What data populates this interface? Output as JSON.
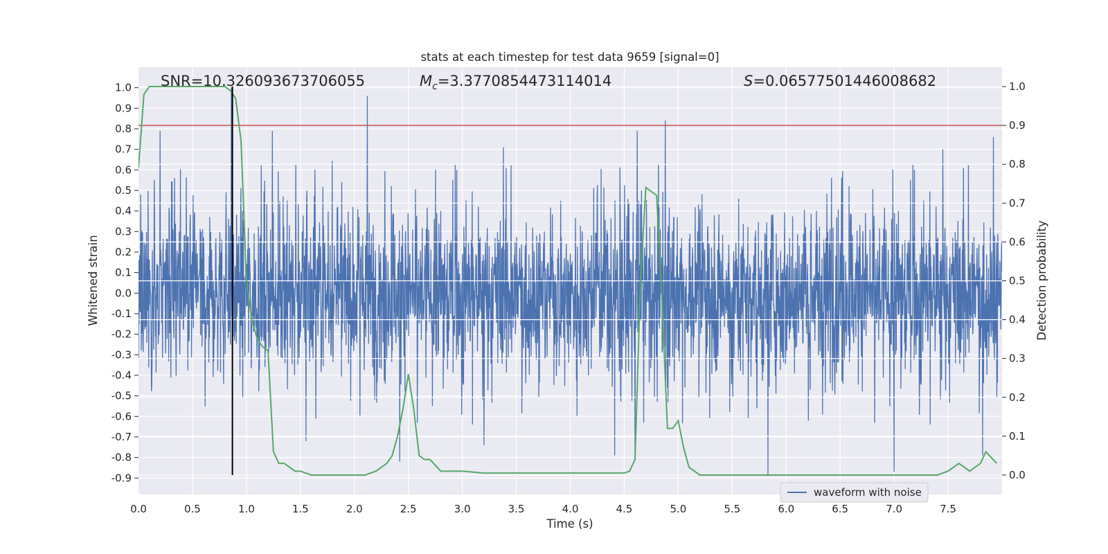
{
  "chart_data": {
    "type": "line",
    "title": "stats at each timestep for test data 9659 [signal=0]",
    "xlabel": "Time (s)",
    "ylabel": "Whitened strain",
    "y2label": "Detection probability",
    "xlim": [
      0.0,
      8.0
    ],
    "ylim": [
      -0.98,
      1.1
    ],
    "y2lim": [
      -0.05,
      1.05
    ],
    "xticks": [
      "0.0",
      "0.5",
      "1.0",
      "1.5",
      "2.0",
      "2.5",
      "3.0",
      "3.5",
      "4.0",
      "4.5",
      "5.0",
      "5.5",
      "6.0",
      "6.5",
      "7.0",
      "7.5"
    ],
    "yticks": [
      "1.0",
      "0.9",
      "0.8",
      "0.7",
      "0.6",
      "0.5",
      "0.4",
      "0.3",
      "0.2",
      "0.1",
      "0.0",
      "-0.1",
      "-0.2",
      "-0.3",
      "-0.4",
      "-0.5",
      "-0.6",
      "-0.7",
      "-0.8",
      "-0.9"
    ],
    "y2ticks": [
      "1.0",
      "0.9",
      "0.8",
      "0.7",
      "0.6",
      "0.5",
      "0.4",
      "0.3",
      "0.2",
      "0.1",
      "0.0"
    ],
    "annotations": {
      "snr": "SNR=10.326093673706055",
      "mc_symbol": "M",
      "mc_sub": "c",
      "mc_value": "=3.3770854473114014",
      "s_symbol": "S",
      "s_value": "=0.06577501446008682"
    },
    "legend": {
      "label": "waveform with noise",
      "position": "lower-right"
    },
    "threshold": {
      "y2": 0.9,
      "color": "#c44e52"
    },
    "marker_time": 0.87,
    "colors": {
      "strain": "#4c72b0",
      "prob": "#55a868",
      "threshold": "#c44e52",
      "marker": "#000000",
      "background": "#eaeaf2",
      "grid": "#ffffff"
    },
    "series": [
      {
        "name": "waveform with noise",
        "note": "noisy whitened strain, dense band about +/-0.25 with spikes",
        "spikes": [
          {
            "x": 0.86,
            "y": 1.0
          },
          {
            "x": 2.12,
            "y": 0.96
          },
          {
            "x": 4.88,
            "y": 0.84
          },
          {
            "x": 0.2,
            "y": 0.79
          },
          {
            "x": 1.24,
            "y": 0.79
          },
          {
            "x": 4.62,
            "y": 0.79
          },
          {
            "x": 7.92,
            "y": 0.76
          },
          {
            "x": 3.38,
            "y": 0.71
          },
          {
            "x": 7.45,
            "y": 0.7
          },
          {
            "x": 5.83,
            "y": -0.89
          },
          {
            "x": 7.0,
            "y": -0.87
          },
          {
            "x": 4.6,
            "y": -0.81
          },
          {
            "x": 4.41,
            "y": -0.79
          },
          {
            "x": 7.82,
            "y": -0.79
          },
          {
            "x": 2.42,
            "y": -0.82
          },
          {
            "x": 1.55,
            "y": -0.72
          },
          {
            "x": 3.2,
            "y": -0.74
          }
        ]
      },
      {
        "name": "detection probability",
        "axis": "right",
        "x": [
          0.0,
          0.05,
          0.1,
          0.2,
          0.3,
          0.4,
          0.5,
          0.6,
          0.7,
          0.8,
          0.85,
          0.9,
          0.95,
          1.0,
          1.05,
          1.1,
          1.15,
          1.2,
          1.25,
          1.3,
          1.35,
          1.4,
          1.45,
          1.5,
          1.6,
          1.7,
          1.8,
          1.9,
          2.0,
          2.1,
          2.2,
          2.3,
          2.35,
          2.4,
          2.45,
          2.5,
          2.55,
          2.6,
          2.65,
          2.7,
          2.8,
          2.9,
          3.0,
          3.2,
          3.4,
          3.6,
          3.8,
          4.0,
          4.2,
          4.3,
          4.4,
          4.5,
          4.55,
          4.6,
          4.65,
          4.7,
          4.75,
          4.8,
          4.85,
          4.9,
          4.95,
          5.0,
          5.05,
          5.1,
          5.2,
          5.4,
          5.6,
          5.8,
          6.0,
          6.2,
          6.4,
          6.6,
          6.8,
          7.0,
          7.2,
          7.4,
          7.5,
          7.55,
          7.6,
          7.65,
          7.7,
          7.75,
          7.8,
          7.85,
          7.95
        ],
        "y": [
          0.79,
          0.98,
          1.0,
          1.0,
          1.0,
          1.0,
          1.0,
          1.0,
          1.0,
          1.0,
          0.99,
          0.97,
          0.86,
          0.5,
          0.4,
          0.35,
          0.33,
          0.32,
          0.06,
          0.03,
          0.03,
          0.02,
          0.01,
          0.01,
          0.0,
          0.0,
          0.0,
          0.0,
          0.0,
          0.0,
          0.01,
          0.03,
          0.05,
          0.1,
          0.17,
          0.26,
          0.17,
          0.05,
          0.04,
          0.04,
          0.01,
          0.01,
          0.01,
          0.005,
          0.005,
          0.005,
          0.005,
          0.005,
          0.005,
          0.005,
          0.005,
          0.005,
          0.01,
          0.04,
          0.5,
          0.74,
          0.73,
          0.72,
          0.45,
          0.12,
          0.12,
          0.14,
          0.07,
          0.02,
          0.0,
          0.0,
          0.0,
          0.0,
          0.0,
          0.0,
          0.0,
          0.0,
          0.0,
          0.0,
          0.0,
          0.0,
          0.01,
          0.02,
          0.03,
          0.02,
          0.01,
          0.02,
          0.03,
          0.06,
          0.03
        ]
      }
    ]
  }
}
